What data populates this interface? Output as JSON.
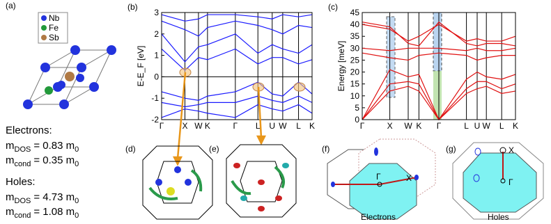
{
  "panels": {
    "a": {
      "label": "(a)",
      "legend": [
        "Nb",
        "Fe",
        "Sb"
      ],
      "electrons": {
        "heading": "Electrons:",
        "rows": [
          {
            "m": "m",
            "sub": "DOS",
            "rest": "= 0.83 m",
            "sub2": "0"
          },
          {
            "m": "m",
            "sub": "cond",
            "rest": "= 0.35 m",
            "sub2": "0"
          }
        ]
      },
      "holes": {
        "heading": "Holes:",
        "rows": [
          {
            "m": "m",
            "sub": "DOS",
            "rest": "= 4.73 m",
            "sub2": "0"
          },
          {
            "m": "m",
            "sub": "cond",
            "rest": "= 1.08 m",
            "sub2": "0"
          }
        ]
      }
    },
    "d": {
      "label": "(d)"
    },
    "e": {
      "label": "(e)"
    },
    "f": {
      "label": "(f)",
      "gamma": "Γ",
      "x": "X",
      "caption": "Electrons"
    },
    "g": {
      "label": "(g)",
      "x": "X",
      "gamma": "Γ",
      "caption": "Holes"
    }
  },
  "chart_data": [
    {
      "type": "line",
      "label": "(b)",
      "ylabel": "E-E_F [eV]",
      "color": "#1a1aff",
      "x": [
        0,
        0.155,
        0.245,
        0.305,
        0.49,
        0.64,
        0.735,
        0.805,
        0.91,
        1
      ],
      "xlim": [
        0,
        1
      ],
      "xticks": [
        {
          "value": 0,
          "label": "Γ"
        },
        {
          "value": 0.155,
          "label": "X"
        },
        {
          "value": 0.245,
          "label": "W"
        },
        {
          "value": 0.305,
          "label": "K"
        },
        {
          "value": 0.49,
          "label": "Γ"
        },
        {
          "value": 0.64,
          "label": "L"
        },
        {
          "value": 0.735,
          "label": "U"
        },
        {
          "value": 0.805,
          "label": "W"
        },
        {
          "value": 0.91,
          "label": "L"
        },
        {
          "value": 1,
          "label": "K"
        }
      ],
      "ylim": [
        -2,
        3
      ],
      "yticks": [
        -2,
        -1,
        0,
        1,
        2,
        3
      ],
      "series": [
        {
          "values": [
            -1.9,
            -1.5,
            -1.6,
            -1.7,
            -1.9,
            -1.3,
            -1.5,
            -1.6,
            -1.3,
            -1.7
          ]
        },
        {
          "values": [
            -1.2,
            -1.4,
            -1.3,
            -1.2,
            -1.2,
            -0.9,
            -1.1,
            -1.2,
            -0.9,
            -1.2
          ]
        },
        {
          "values": [
            -0.7,
            -1.0,
            -1.1,
            -0.9,
            -0.7,
            -0.25,
            -0.8,
            -0.9,
            -0.25,
            -0.8
          ]
        },
        {
          "values": [
            1.3,
            0.3,
            0.9,
            0.8,
            1.3,
            0.6,
            0.9,
            0.9,
            0.6,
            0.8
          ]
        },
        {
          "values": [
            2.0,
            0.7,
            1.4,
            1.5,
            2.0,
            1.1,
            1.5,
            1.3,
            1.1,
            1.5
          ]
        },
        {
          "values": [
            2.6,
            2.2,
            1.9,
            2.3,
            2.6,
            2.4,
            2.2,
            2.0,
            2.4,
            2.3
          ]
        },
        {
          "values": [
            2.9,
            2.6,
            2.7,
            2.9,
            2.9,
            2.8,
            2.7,
            2.9,
            2.8,
            2.9
          ]
        }
      ]
    },
    {
      "type": "line",
      "label": "(c)",
      "ylabel": "Energy [meV]",
      "color": "#e01010",
      "x": [
        0,
        0.18,
        0.3,
        0.37,
        0.5,
        0.68,
        0.75,
        0.81,
        0.91,
        1
      ],
      "xlim": [
        0,
        1
      ],
      "xticks": [
        {
          "value": 0,
          "label": "Γ"
        },
        {
          "value": 0.18,
          "label": "X"
        },
        {
          "value": 0.3,
          "label": "W"
        },
        {
          "value": 0.37,
          "label": "K"
        },
        {
          "value": 0.5,
          "label": "Γ"
        },
        {
          "value": 0.68,
          "label": "L"
        },
        {
          "value": 0.75,
          "label": "U"
        },
        {
          "value": 0.81,
          "label": "W"
        },
        {
          "value": 0.91,
          "label": "L"
        },
        {
          "value": 1,
          "label": "K"
        }
      ],
      "ylim": [
        0,
        45
      ],
      "yticks": [
        0,
        5,
        10,
        15,
        20,
        25,
        30,
        35,
        40,
        45
      ],
      "series": [
        {
          "values": [
            0,
            12,
            14,
            12,
            0,
            11,
            13,
            14,
            11,
            12
          ]
        },
        {
          "values": [
            0,
            15,
            16,
            15,
            0,
            13,
            16,
            16,
            13,
            15
          ]
        },
        {
          "values": [
            0,
            21,
            18,
            19,
            0,
            17,
            20,
            18,
            17,
            19
          ]
        },
        {
          "values": [
            28,
            26,
            25,
            27,
            28,
            27,
            25,
            26,
            27,
            27
          ]
        },
        {
          "values": [
            30,
            29,
            30,
            30,
            30,
            29,
            30,
            29,
            29,
            30
          ]
        },
        {
          "values": [
            40,
            38,
            33,
            35,
            40,
            33,
            34,
            33,
            33,
            35
          ]
        },
        {
          "values": [
            41,
            39,
            32,
            31,
            41,
            32,
            31,
            32,
            32,
            31
          ]
        }
      ]
    }
  ]
}
